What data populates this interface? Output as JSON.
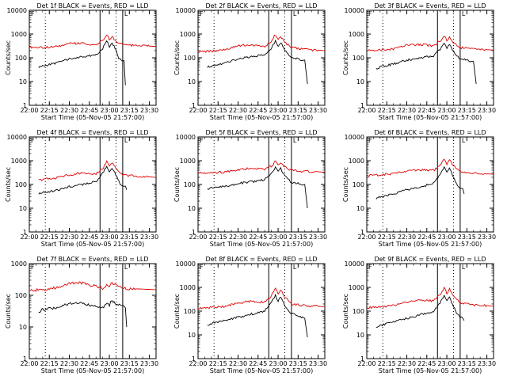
{
  "colors": {
    "events": "#000000",
    "lld": "#e00000",
    "background": "#ffffff",
    "axes": "#000000"
  },
  "chart_data": [
    {
      "type": "line",
      "title": "Det 1f BLACK = Events, RED = LLD",
      "xlabel": "Start Time (05-Nov-05 21:57:00)",
      "ylabel": "Counts/sec",
      "xlim": [
        "22:00",
        "23:35"
      ],
      "ylim": [
        1,
        10000
      ],
      "yscale": "log",
      "grid": false,
      "x_ticks": [
        "22:00",
        "22:15",
        "22:30",
        "22:45",
        "23:00",
        "23:15",
        "23:30"
      ],
      "y_ticks": [
        "1",
        "10",
        "100",
        "1000",
        "10000"
      ],
      "markers": {
        "dotted": [
          "22:12",
          "23:05"
        ],
        "solid": [
          "22:53",
          "23:10"
        ],
        "corner_labels": [
          "F",
          "L"
        ]
      },
      "series": [
        {
          "color": "#e00000",
          "x": [
            "22:00",
            "22:10",
            "22:20",
            "22:30",
            "22:40",
            "22:50",
            "22:55",
            "22:58",
            "23:00",
            "23:02",
            "23:05",
            "23:10",
            "23:20",
            "23:30",
            "23:35"
          ],
          "y": [
            280,
            270,
            290,
            400,
            410,
            330,
            550,
            900,
            600,
            800,
            500,
            360,
            320,
            310,
            300
          ]
        },
        {
          "color": "#000000",
          "x": [
            "22:07",
            "22:10",
            "22:20",
            "22:30",
            "22:40",
            "22:50",
            "22:55",
            "22:58",
            "23:00",
            "23:02",
            "23:05",
            "23:07",
            "23:09",
            "23:11",
            "23:12"
          ],
          "y": [
            40,
            45,
            60,
            90,
            110,
            130,
            250,
            500,
            300,
            450,
            200,
            90,
            80,
            75,
            7
          ]
        }
      ]
    },
    {
      "type": "line",
      "title": "Det 2f BLACK = Events, RED = LLD",
      "xlabel": "Start Time (05-Nov-05 21:57:00)",
      "ylabel": "Counts/sec",
      "xlim": [
        "22:00",
        "23:35"
      ],
      "ylim": [
        1,
        10000
      ],
      "yscale": "log",
      "grid": false,
      "x_ticks": [
        "22:00",
        "22:15",
        "22:30",
        "22:45",
        "23:00",
        "23:15",
        "23:30"
      ],
      "y_ticks": [
        "1",
        "10",
        "100",
        "1000",
        "10000"
      ],
      "markers": {
        "dotted": [
          "22:12",
          "23:05"
        ],
        "solid": [
          "22:53",
          "23:10"
        ],
        "corner_labels": [
          "F",
          "L"
        ]
      },
      "series": [
        {
          "color": "#e00000",
          "x": [
            "22:00",
            "22:10",
            "22:20",
            "22:30",
            "22:40",
            "22:50",
            "22:55",
            "22:58",
            "23:00",
            "23:02",
            "23:05",
            "23:10",
            "23:20",
            "23:30",
            "23:35"
          ],
          "y": [
            180,
            190,
            220,
            320,
            350,
            300,
            500,
            950,
            550,
            800,
            450,
            280,
            220,
            210,
            200
          ]
        },
        {
          "color": "#000000",
          "x": [
            "22:07",
            "22:10",
            "22:20",
            "22:30",
            "22:40",
            "22:50",
            "22:55",
            "22:58",
            "23:00",
            "23:02",
            "23:05",
            "23:10",
            "23:15",
            "23:20",
            "23:22"
          ],
          "y": [
            40,
            45,
            60,
            90,
            110,
            130,
            260,
            520,
            300,
            460,
            200,
            100,
            90,
            80,
            8
          ]
        }
      ]
    },
    {
      "type": "line",
      "title": "Det 3f BLACK = Events, RED = LLD",
      "xlabel": "Start Time (05-Nov-05 21:57:00)",
      "ylabel": "Counts/sec",
      "xlim": [
        "22:00",
        "23:35"
      ],
      "ylim": [
        1,
        10000
      ],
      "yscale": "log",
      "grid": false,
      "x_ticks": [
        "22:00",
        "22:15",
        "22:30",
        "22:45",
        "23:00",
        "23:15",
        "23:30"
      ],
      "y_ticks": [
        "1",
        "10",
        "100",
        "1000",
        "10000"
      ],
      "markers": {
        "dotted": [
          "22:12",
          "23:05"
        ],
        "solid": [
          "22:53",
          "23:10"
        ],
        "corner_labels": [
          "F",
          "L"
        ]
      },
      "series": [
        {
          "color": "#e00000",
          "x": [
            "22:00",
            "22:10",
            "22:20",
            "22:30",
            "22:40",
            "22:50",
            "22:55",
            "22:58",
            "23:00",
            "23:02",
            "23:05",
            "23:10",
            "23:20",
            "23:30",
            "23:35"
          ],
          "y": [
            200,
            210,
            240,
            330,
            370,
            310,
            500,
            850,
            550,
            750,
            420,
            270,
            230,
            220,
            210
          ]
        },
        {
          "color": "#000000",
          "x": [
            "22:07",
            "22:10",
            "22:20",
            "22:30",
            "22:40",
            "22:50",
            "22:55",
            "22:58",
            "23:00",
            "23:02",
            "23:05",
            "23:10",
            "23:15",
            "23:20",
            "23:22"
          ],
          "y": [
            35,
            40,
            55,
            80,
            100,
            120,
            230,
            430,
            260,
            400,
            180,
            90,
            80,
            70,
            8
          ]
        }
      ]
    },
    {
      "type": "line",
      "title": "Det 4f BLACK = Events, RED = LLD",
      "xlabel": "Start Time (05-Nov-05 21:57:00)",
      "ylabel": "Counts/sec",
      "xlim": [
        "22:00",
        "23:35"
      ],
      "ylim": [
        1,
        10000
      ],
      "yscale": "log",
      "grid": false,
      "x_ticks": [
        "22:00",
        "22:15",
        "22:30",
        "22:45",
        "23:00",
        "23:15",
        "23:30"
      ],
      "y_ticks": [
        "1",
        "10",
        "100",
        "1000",
        "10000"
      ],
      "markers": {
        "dotted": [
          "22:12",
          "23:05"
        ],
        "solid": [
          "22:53",
          "23:10"
        ],
        "corner_labels": [
          "F",
          "L"
        ]
      },
      "series": [
        {
          "color": "#e00000",
          "x": [
            "22:07",
            "22:10",
            "22:20",
            "22:30",
            "22:40",
            "22:50",
            "22:55",
            "22:58",
            "23:00",
            "23:02",
            "23:05",
            "23:10",
            "23:20",
            "23:30",
            "23:35"
          ],
          "y": [
            150,
            160,
            190,
            260,
            300,
            280,
            480,
            950,
            550,
            850,
            450,
            260,
            220,
            210,
            200
          ]
        },
        {
          "color": "#000000",
          "x": [
            "22:07",
            "22:10",
            "22:20",
            "22:30",
            "22:40",
            "22:50",
            "22:55",
            "22:58",
            "23:00",
            "23:02",
            "23:05",
            "23:08",
            "23:10",
            "23:12",
            "23:13"
          ],
          "y": [
            40,
            45,
            55,
            80,
            100,
            130,
            300,
            600,
            320,
            520,
            230,
            110,
            90,
            85,
            60
          ]
        }
      ]
    },
    {
      "type": "line",
      "title": "Det 5f BLACK = Events, RED = LLD",
      "xlabel": "Start Time (05-Nov-05 21:57:00)",
      "ylabel": "Counts/sec",
      "xlim": [
        "22:00",
        "23:35"
      ],
      "ylim": [
        1,
        10000
      ],
      "yscale": "log",
      "grid": false,
      "x_ticks": [
        "22:00",
        "22:15",
        "22:30",
        "22:45",
        "23:00",
        "23:15",
        "23:30"
      ],
      "y_ticks": [
        "1",
        "10",
        "100",
        "1000",
        "10000"
      ],
      "markers": {
        "dotted": [
          "22:12",
          "23:05"
        ],
        "solid": [
          "22:53",
          "23:10"
        ],
        "corner_labels": [
          "F",
          "L"
        ]
      },
      "series": [
        {
          "color": "#e00000",
          "x": [
            "22:00",
            "22:10",
            "22:20",
            "22:30",
            "22:40",
            "22:50",
            "22:55",
            "22:58",
            "23:00",
            "23:02",
            "23:05",
            "23:10",
            "23:20",
            "23:30",
            "23:35"
          ],
          "y": [
            300,
            310,
            330,
            420,
            480,
            420,
            600,
            950,
            650,
            850,
            550,
            380,
            350,
            340,
            330
          ]
        },
        {
          "color": "#000000",
          "x": [
            "22:07",
            "22:10",
            "22:20",
            "22:30",
            "22:40",
            "22:50",
            "22:55",
            "22:58",
            "23:00",
            "23:02",
            "23:05",
            "23:10",
            "23:15",
            "23:20",
            "23:22"
          ],
          "y": [
            60,
            70,
            85,
            110,
            130,
            160,
            290,
            500,
            330,
            470,
            230,
            120,
            110,
            100,
            10
          ]
        }
      ]
    },
    {
      "type": "line",
      "title": "Det 6f BLACK = Events, RED = LLD",
      "xlabel": "Start Time (05-Nov-05 21:57:00)",
      "ylabel": "Counts/sec",
      "xlim": [
        "22:00",
        "23:35"
      ],
      "ylim": [
        1,
        10000
      ],
      "yscale": "log",
      "grid": false,
      "x_ticks": [
        "22:00",
        "22:15",
        "22:30",
        "22:45",
        "23:00",
        "23:15",
        "23:30"
      ],
      "y_ticks": [
        "1",
        "10",
        "100",
        "1000",
        "10000"
      ],
      "markers": {
        "dotted": [
          "22:12",
          "23:05"
        ],
        "solid": [
          "22:53",
          "23:10"
        ],
        "corner_labels": [
          "F",
          "L"
        ]
      },
      "series": [
        {
          "color": "#e00000",
          "x": [
            "22:00",
            "22:10",
            "22:20",
            "22:30",
            "22:40",
            "22:50",
            "22:55",
            "22:58",
            "23:00",
            "23:02",
            "23:05",
            "23:10",
            "23:20",
            "23:30",
            "23:35"
          ],
          "y": [
            240,
            250,
            280,
            370,
            420,
            380,
            650,
            1200,
            700,
            1100,
            600,
            330,
            290,
            280,
            270
          ]
        },
        {
          "color": "#000000",
          "x": [
            "22:07",
            "22:10",
            "22:20",
            "22:30",
            "22:40",
            "22:50",
            "22:55",
            "22:58",
            "23:00",
            "23:02",
            "23:05",
            "23:08",
            "23:10",
            "23:12",
            "23:13"
          ],
          "y": [
            25,
            30,
            40,
            60,
            80,
            110,
            260,
            520,
            300,
            470,
            200,
            90,
            70,
            65,
            40
          ]
        }
      ]
    },
    {
      "type": "line",
      "title": "Det 7f BLACK = Events, RED = LLD",
      "xlabel": "Start Time (05-Nov-05 21:57:00)",
      "ylabel": "Counts/sec",
      "xlim": [
        "22:00",
        "23:35"
      ],
      "ylim": [
        1,
        1000
      ],
      "yscale": "log",
      "grid": false,
      "x_ticks": [
        "22:00",
        "22:15",
        "22:30",
        "22:45",
        "23:00",
        "23:15",
        "23:30"
      ],
      "y_ticks": [
        "1",
        "10",
        "100",
        "1000"
      ],
      "markers": {
        "dotted": [
          "22:12",
          "23:05"
        ],
        "solid": [
          "22:53",
          "23:10"
        ],
        "corner_labels": [
          "F",
          "L"
        ]
      },
      "series": [
        {
          "color": "#e00000",
          "x": [
            "22:00",
            "22:10",
            "22:20",
            "22:30",
            "22:35",
            "22:40",
            "22:50",
            "22:55",
            "22:58",
            "23:00",
            "23:02",
            "23:05",
            "23:10",
            "23:20",
            "23:35"
          ],
          "y": [
            140,
            150,
            170,
            230,
            260,
            240,
            190,
            170,
            220,
            200,
            240,
            210,
            170,
            160,
            150
          ]
        },
        {
          "color": "#000000",
          "x": [
            "22:07",
            "22:10",
            "22:20",
            "22:30",
            "22:35",
            "22:40",
            "22:50",
            "22:55",
            "22:58",
            "23:00",
            "23:02",
            "23:05",
            "23:10",
            "23:12",
            "23:13"
          ],
          "y": [
            30,
            35,
            40,
            55,
            60,
            55,
            45,
            40,
            60,
            50,
            70,
            55,
            45,
            40,
            10
          ]
        }
      ]
    },
    {
      "type": "line",
      "title": "Det 8f BLACK = Events, RED = LLD",
      "xlabel": "Start Time (05-Nov-05 21:57:00)",
      "ylabel": "Counts/sec",
      "xlim": [
        "22:00",
        "23:35"
      ],
      "ylim": [
        1,
        10000
      ],
      "yscale": "log",
      "grid": false,
      "x_ticks": [
        "22:00",
        "22:15",
        "22:30",
        "22:45",
        "23:00",
        "23:15",
        "23:30"
      ],
      "y_ticks": [
        "1",
        "10",
        "100",
        "1000",
        "10000"
      ],
      "markers": {
        "dotted": [
          "22:12",
          "23:05"
        ],
        "solid": [
          "22:53",
          "23:10"
        ],
        "corner_labels": [
          "F",
          "L"
        ]
      },
      "series": [
        {
          "color": "#e00000",
          "x": [
            "22:00",
            "22:10",
            "22:20",
            "22:30",
            "22:40",
            "22:50",
            "22:55",
            "22:58",
            "23:00",
            "23:02",
            "23:05",
            "23:10",
            "23:20",
            "23:30",
            "23:35"
          ],
          "y": [
            130,
            140,
            160,
            220,
            260,
            240,
            450,
            900,
            500,
            800,
            400,
            200,
            170,
            160,
            150
          ]
        },
        {
          "color": "#000000",
          "x": [
            "22:07",
            "22:10",
            "22:20",
            "22:30",
            "22:40",
            "22:50",
            "22:55",
            "22:58",
            "23:00",
            "23:02",
            "23:05",
            "23:10",
            "23:15",
            "23:20",
            "23:22"
          ],
          "y": [
            25,
            30,
            40,
            55,
            75,
            100,
            230,
            450,
            260,
            400,
            170,
            80,
            60,
            50,
            8
          ]
        }
      ]
    },
    {
      "type": "line",
      "title": "Det 9f BLACK = Events, RED = LLD",
      "xlabel": "Start Time (05-Nov-05 21:57:00)",
      "ylabel": "Counts/sec",
      "xlim": [
        "22:00",
        "23:35"
      ],
      "ylim": [
        1,
        10000
      ],
      "yscale": "log",
      "grid": false,
      "x_ticks": [
        "22:00",
        "22:15",
        "22:30",
        "22:45",
        "23:00",
        "23:15",
        "23:30"
      ],
      "y_ticks": [
        "1",
        "10",
        "100",
        "1000",
        "10000"
      ],
      "markers": {
        "dotted": [
          "22:12",
          "23:05"
        ],
        "solid": [
          "22:53",
          "23:10"
        ],
        "corner_labels": [
          "F",
          "L"
        ]
      },
      "series": [
        {
          "color": "#e00000",
          "x": [
            "22:00",
            "22:10",
            "22:20",
            "22:30",
            "22:40",
            "22:50",
            "22:55",
            "22:58",
            "23:00",
            "23:02",
            "23:05",
            "23:10",
            "23:20",
            "23:30",
            "23:35"
          ],
          "y": [
            140,
            150,
            170,
            240,
            290,
            270,
            480,
            1000,
            550,
            900,
            450,
            220,
            180,
            170,
            160
          ]
        },
        {
          "color": "#000000",
          "x": [
            "22:07",
            "22:10",
            "22:20",
            "22:30",
            "22:40",
            "22:50",
            "22:55",
            "22:58",
            "23:00",
            "23:02",
            "23:05",
            "23:08",
            "23:10",
            "23:12",
            "23:13"
          ],
          "y": [
            20,
            25,
            35,
            50,
            70,
            100,
            220,
            450,
            260,
            400,
            160,
            70,
            55,
            50,
            40
          ]
        }
      ]
    }
  ]
}
